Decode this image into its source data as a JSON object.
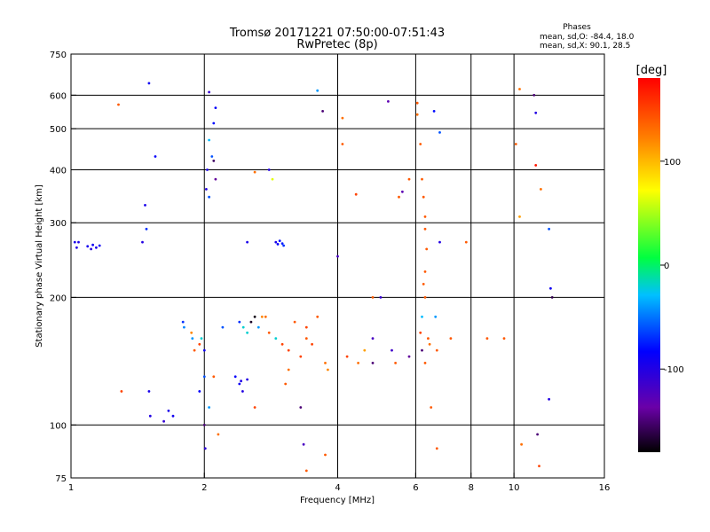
{
  "chart_data": {
    "type": "scatter",
    "title": "Tromsø 20171221 07:50:00-07:51:43",
    "subtitle": "RwPretec (8p)",
    "stats": {
      "heading": "Phases",
      "line_o": "mean, sd,O: -84.4, 18.0",
      "line_x": "mean, sd,X:  90.1, 28.5"
    },
    "xlabel": "Frequency [MHz]",
    "ylabel": "Stationary phase Virtual Height [km]",
    "xscale": "log",
    "yscale": "log",
    "xlim": [
      1,
      16
    ],
    "ylim": [
      75,
      750
    ],
    "x_ticks": [
      1,
      2,
      4,
      6,
      8,
      10,
      16
    ],
    "y_ticks": [
      75,
      100,
      200,
      300,
      400,
      500,
      600,
      750
    ],
    "grid": true,
    "colorbar": {
      "label": "[deg]",
      "range": [
        -180,
        180
      ],
      "ticks": [
        100,
        0,
        -100
      ],
      "colormap": "rainbow"
    },
    "series": [
      {
        "description": "o-mode phase points",
        "points": [
          [
            1.02,
            270,
            -95
          ],
          [
            1.03,
            262,
            -100
          ],
          [
            1.04,
            270,
            -98
          ],
          [
            1.09,
            264,
            -92
          ],
          [
            1.11,
            260,
            -100
          ],
          [
            1.12,
            266,
            -90
          ],
          [
            1.14,
            262,
            -96
          ],
          [
            1.16,
            265,
            -88
          ],
          [
            1.45,
            270,
            -100
          ],
          [
            1.47,
            330,
            -95
          ],
          [
            1.48,
            290,
            -70
          ],
          [
            1.5,
            640,
            -90
          ],
          [
            1.5,
            120,
            -95
          ],
          [
            1.51,
            105,
            -100
          ],
          [
            1.55,
            430,
            -85
          ],
          [
            1.7,
            105,
            -92
          ],
          [
            1.62,
            102,
            -110
          ],
          [
            1.66,
            108,
            -95
          ],
          [
            1.79,
            175,
            -70
          ],
          [
            1.8,
            170,
            -45
          ],
          [
            1.88,
            160,
            -40
          ],
          [
            1.95,
            120,
            -85
          ],
          [
            1.97,
            160,
            -20
          ],
          [
            2.02,
            360,
            -100
          ],
          [
            2.03,
            400,
            -95
          ],
          [
            2.05,
            470,
            -30
          ],
          [
            2.08,
            430,
            -60
          ],
          [
            2.1,
            515,
            -80
          ],
          [
            2.12,
            560,
            -85
          ],
          [
            2.05,
            610,
            -110
          ],
          [
            2.05,
            345,
            -60
          ],
          [
            2.12,
            380,
            -140
          ],
          [
            2.1,
            420,
            -155
          ],
          [
            2.0,
            150,
            -90
          ],
          [
            2.0,
            130,
            -60
          ],
          [
            2.05,
            110,
            -40
          ],
          [
            2.0,
            100,
            -150
          ],
          [
            2.01,
            88,
            -105
          ],
          [
            2.2,
            170,
            -60
          ],
          [
            2.4,
            175,
            -70
          ],
          [
            2.45,
            170,
            -20
          ],
          [
            2.35,
            130,
            -85
          ],
          [
            2.4,
            125,
            -90
          ],
          [
            2.42,
            127,
            -98
          ],
          [
            2.44,
            120,
            -100
          ],
          [
            2.5,
            128,
            -100
          ],
          [
            2.5,
            270,
            -95
          ],
          [
            2.55,
            175,
            -170
          ],
          [
            2.6,
            180,
            -175
          ],
          [
            2.7,
            180,
            120
          ],
          [
            2.5,
            165,
            -20
          ],
          [
            2.65,
            170,
            -40
          ],
          [
            2.75,
            180,
            130
          ],
          [
            2.9,
            270,
            -95
          ],
          [
            2.93,
            267,
            -85
          ],
          [
            2.96,
            272,
            -80
          ],
          [
            3.0,
            268,
            -75
          ],
          [
            3.02,
            265,
            -70
          ],
          [
            2.85,
            380,
            65
          ],
          [
            2.6,
            395,
            130
          ],
          [
            2.8,
            400,
            -100
          ],
          [
            2.6,
            110,
            150
          ],
          [
            2.8,
            165,
            140
          ],
          [
            2.9,
            160,
            -20
          ],
          [
            3.0,
            155,
            150
          ],
          [
            3.1,
            150,
            150
          ],
          [
            3.3,
            145,
            150
          ],
          [
            3.4,
            160,
            140
          ],
          [
            3.5,
            155,
            150
          ],
          [
            3.05,
            125,
            140
          ],
          [
            3.1,
            135,
            130
          ],
          [
            3.2,
            175,
            140
          ],
          [
            3.3,
            110,
            -150
          ],
          [
            3.35,
            90,
            -120
          ],
          [
            3.4,
            170,
            150
          ],
          [
            3.6,
            180,
            140
          ],
          [
            3.75,
            140,
            130
          ],
          [
            3.8,
            135,
            120
          ],
          [
            3.4,
            78,
            140
          ],
          [
            3.75,
            85,
            140
          ],
          [
            3.6,
            615,
            -40
          ],
          [
            3.7,
            550,
            -150
          ],
          [
            4.0,
            250,
            -120
          ],
          [
            4.1,
            460,
            140
          ],
          [
            4.1,
            530,
            130
          ],
          [
            4.2,
            145,
            150
          ],
          [
            4.4,
            350,
            150
          ],
          [
            4.45,
            140,
            130
          ],
          [
            4.6,
            150,
            110
          ],
          [
            4.8,
            200,
            140
          ],
          [
            4.8,
            160,
            -120
          ],
          [
            4.8,
            140,
            -150
          ],
          [
            5.0,
            200,
            -110
          ],
          [
            5.2,
            580,
            -130
          ],
          [
            5.3,
            150,
            -115
          ],
          [
            5.4,
            140,
            140
          ],
          [
            5.5,
            345,
            140
          ],
          [
            5.8,
            380,
            140
          ],
          [
            5.6,
            355,
            -130
          ],
          [
            5.8,
            145,
            -140
          ],
          [
            6.05,
            575,
            140
          ],
          [
            6.05,
            540,
            130
          ],
          [
            6.15,
            460,
            140
          ],
          [
            6.2,
            380,
            140
          ],
          [
            6.25,
            345,
            140
          ],
          [
            6.3,
            310,
            140
          ],
          [
            6.3,
            290,
            140
          ],
          [
            6.35,
            260,
            140
          ],
          [
            6.3,
            230,
            140
          ],
          [
            6.25,
            215,
            140
          ],
          [
            6.3,
            200,
            140
          ],
          [
            6.2,
            180,
            -30
          ],
          [
            6.15,
            165,
            150
          ],
          [
            6.2,
            150,
            -150
          ],
          [
            6.3,
            140,
            140
          ],
          [
            6.4,
            160,
            140
          ],
          [
            6.45,
            155,
            130
          ],
          [
            6.6,
            550,
            -80
          ],
          [
            6.8,
            490,
            -60
          ],
          [
            6.8,
            270,
            -100
          ],
          [
            6.65,
            180,
            -40
          ],
          [
            6.7,
            150,
            140
          ],
          [
            6.5,
            110,
            140
          ],
          [
            6.7,
            88,
            140
          ],
          [
            7.2,
            160,
            140
          ],
          [
            7.8,
            270,
            140
          ],
          [
            8.7,
            160,
            140
          ],
          [
            9.5,
            160,
            140
          ],
          [
            10.3,
            620,
            130
          ],
          [
            10.3,
            310,
            110
          ],
          [
            10.1,
            460,
            140
          ],
          [
            10.4,
            90,
            130
          ],
          [
            11.1,
            600,
            -150
          ],
          [
            11.2,
            545,
            -100
          ],
          [
            11.2,
            410,
            170
          ],
          [
            11.5,
            360,
            130
          ],
          [
            11.3,
            95,
            -150
          ],
          [
            11.4,
            80,
            150
          ],
          [
            12.0,
            290,
            -60
          ],
          [
            12.1,
            210,
            -90
          ],
          [
            12.2,
            200,
            -160
          ],
          [
            12.0,
            115,
            -100
          ],
          [
            1.28,
            570,
            140
          ],
          [
            1.3,
            120,
            150
          ],
          [
            1.9,
            150,
            140
          ],
          [
            1.95,
            155,
            150
          ],
          [
            1.87,
            165,
            120
          ],
          [
            2.1,
            130,
            140
          ],
          [
            2.15,
            95,
            130
          ]
        ]
      }
    ]
  }
}
